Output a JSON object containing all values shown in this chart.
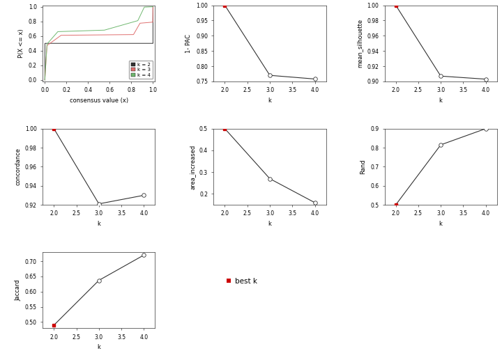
{
  "ecdf": {
    "colors": {
      "k2": "#333333",
      "k3": "#e07070",
      "k4": "#70b870"
    },
    "xlabel": "consensus value (x)",
    "ylabel": "P(X <= x)",
    "legend": [
      "k = 2",
      "k = 3",
      "k = 4"
    ]
  },
  "pac": {
    "k": [
      2,
      3,
      4
    ],
    "values": [
      1.0,
      0.77,
      0.758
    ],
    "best_k_idx": 0,
    "ylabel": "1- PAC",
    "ylim": [
      0.75,
      1.0
    ],
    "yticks": [
      0.75,
      0.8,
      0.85,
      0.9,
      0.95,
      1.0
    ]
  },
  "silhouette": {
    "k": [
      2,
      3,
      4
    ],
    "values": [
      1.0,
      0.907,
      0.903
    ],
    "best_k_idx": 0,
    "ylabel": "mean_silhouette",
    "ylim": [
      0.9,
      1.0
    ],
    "yticks": [
      0.9,
      0.92,
      0.94,
      0.96,
      0.98,
      1.0
    ]
  },
  "concordance": {
    "k": [
      2,
      3,
      4
    ],
    "values": [
      1.0,
      0.921,
      0.93
    ],
    "best_k_idx": 0,
    "ylabel": "concordance",
    "ylim": [
      0.92,
      1.0
    ],
    "yticks": [
      0.92,
      0.94,
      0.96,
      0.98,
      1.0
    ]
  },
  "area": {
    "k": [
      2,
      3,
      4
    ],
    "values": [
      0.5,
      0.27,
      0.16
    ],
    "best_k_idx": 0,
    "ylabel": "area_increased",
    "ylim": [
      0.15,
      0.5
    ],
    "yticks": [
      0.2,
      0.3,
      0.4,
      0.5
    ]
  },
  "rand": {
    "k": [
      2,
      3,
      4
    ],
    "values": [
      0.5,
      0.815,
      0.9
    ],
    "best_k_idx": 0,
    "ylabel": "Rand",
    "ylim": [
      0.5,
      0.9
    ],
    "yticks": [
      0.5,
      0.6,
      0.7,
      0.8,
      0.9
    ]
  },
  "jaccard": {
    "k": [
      2,
      3,
      4
    ],
    "values": [
      0.49,
      0.637,
      0.72
    ],
    "best_k_idx": 0,
    "ylabel": "Jaccard",
    "ylim": [
      0.48,
      0.73
    ],
    "yticks": [
      0.5,
      0.55,
      0.6,
      0.65,
      0.7
    ]
  },
  "best_k_color": "#cc0000",
  "line_color": "#333333",
  "xlabel_k": "k",
  "background": "white",
  "tick_fontsize": 5.5,
  "label_fontsize": 6.0,
  "marker_size": 3.5
}
